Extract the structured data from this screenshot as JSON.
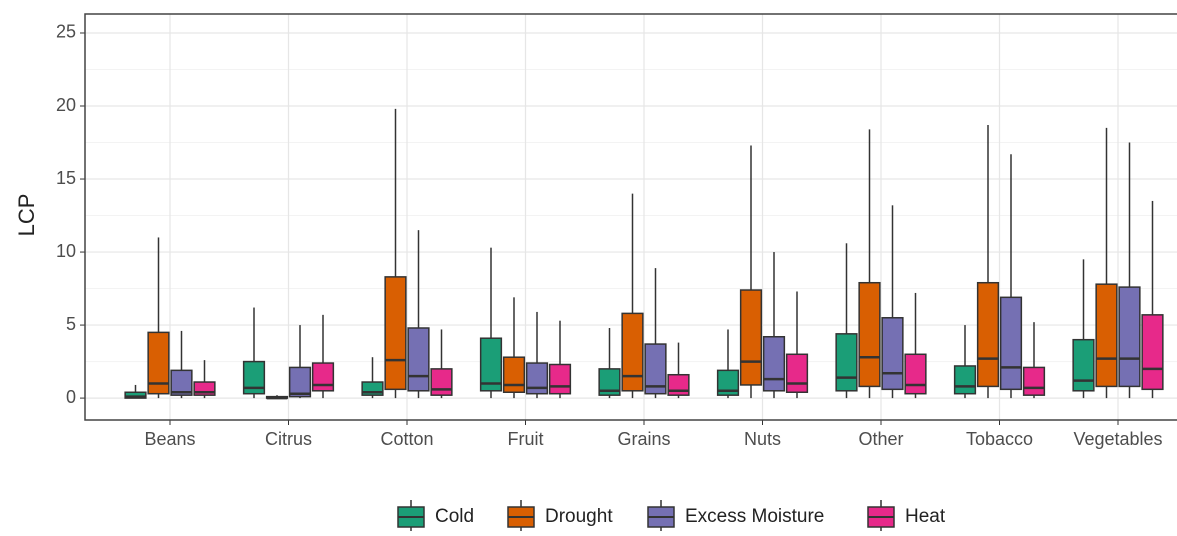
{
  "chart_data": {
    "type": "boxplot",
    "y_label": "LCP",
    "categories": [
      "Beans",
      "Citrus",
      "Cotton",
      "Fruit",
      "Grains",
      "Nuts",
      "Other",
      "Tobacco",
      "Vegetables"
    ],
    "ylim": [
      -1.5,
      26.3
    ],
    "yticks": [
      0,
      5,
      10,
      15,
      20,
      25
    ],
    "grid": true,
    "legend": "bottom",
    "series": [
      {
        "name": "Cold",
        "color": "#1b9e77",
        "low": [
          0,
          0,
          0,
          0,
          0,
          0,
          0,
          0,
          0
        ],
        "q1": [
          0,
          0.3,
          0.2,
          0.5,
          0.2,
          0.2,
          0.5,
          0.3,
          0.5
        ],
        "median": [
          0.1,
          0.7,
          0.4,
          1,
          0.5,
          0.5,
          1.4,
          0.8,
          1.2
        ],
        "q3": [
          0.4,
          2.5,
          1.1,
          4.1,
          2,
          1.9,
          4.4,
          2.2,
          4
        ],
        "high": [
          0.9,
          6.2,
          2.8,
          10.3,
          4.8,
          4.7,
          10.6,
          5,
          9.5
        ]
      },
      {
        "name": "Drought",
        "color": "#d95f02",
        "low": [
          0,
          0,
          0,
          0,
          0,
          0,
          0,
          0,
          0
        ],
        "q1": [
          0.3,
          0,
          0.6,
          0.4,
          0.5,
          0.9,
          0.8,
          0.8,
          0.8
        ],
        "median": [
          1,
          0,
          2.6,
          0.9,
          1.5,
          2.5,
          2.8,
          2.7,
          2.7
        ],
        "q3": [
          4.5,
          0.1,
          8.3,
          2.8,
          5.8,
          7.4,
          7.9,
          7.9,
          7.8
        ],
        "high": [
          11,
          0.2,
          19.8,
          6.9,
          14,
          17.3,
          18.4,
          18.7,
          18.5
        ]
      },
      {
        "name": "Excess Moisture",
        "color": "#7570b3",
        "low": [
          0,
          0,
          0,
          0,
          0,
          0,
          0,
          0,
          0
        ],
        "q1": [
          0.2,
          0.1,
          0.5,
          0.3,
          0.3,
          0.5,
          0.6,
          0.6,
          0.8
        ],
        "median": [
          0.4,
          0.3,
          1.5,
          0.7,
          0.8,
          1.3,
          1.7,
          2.1,
          2.7
        ],
        "q3": [
          1.9,
          2.1,
          4.8,
          2.4,
          3.7,
          4.2,
          5.5,
          6.9,
          7.6
        ],
        "high": [
          4.6,
          5,
          11.5,
          5.9,
          8.9,
          10,
          13.2,
          16.7,
          17.5
        ]
      },
      {
        "name": "Heat",
        "color": "#e7298a",
        "low": [
          0,
          0,
          0,
          0,
          0,
          0,
          0,
          0,
          0
        ],
        "q1": [
          0.2,
          0.5,
          0.2,
          0.3,
          0.2,
          0.4,
          0.3,
          0.2,
          0.6
        ],
        "median": [
          0.4,
          0.9,
          0.6,
          0.8,
          0.5,
          1,
          0.9,
          0.7,
          2
        ],
        "q3": [
          1.1,
          2.4,
          2,
          2.3,
          1.6,
          3,
          3,
          2.1,
          5.7
        ],
        "high": [
          2.6,
          5.7,
          4.7,
          5.3,
          3.8,
          7.3,
          7.2,
          5.2,
          13.5
        ]
      }
    ]
  }
}
